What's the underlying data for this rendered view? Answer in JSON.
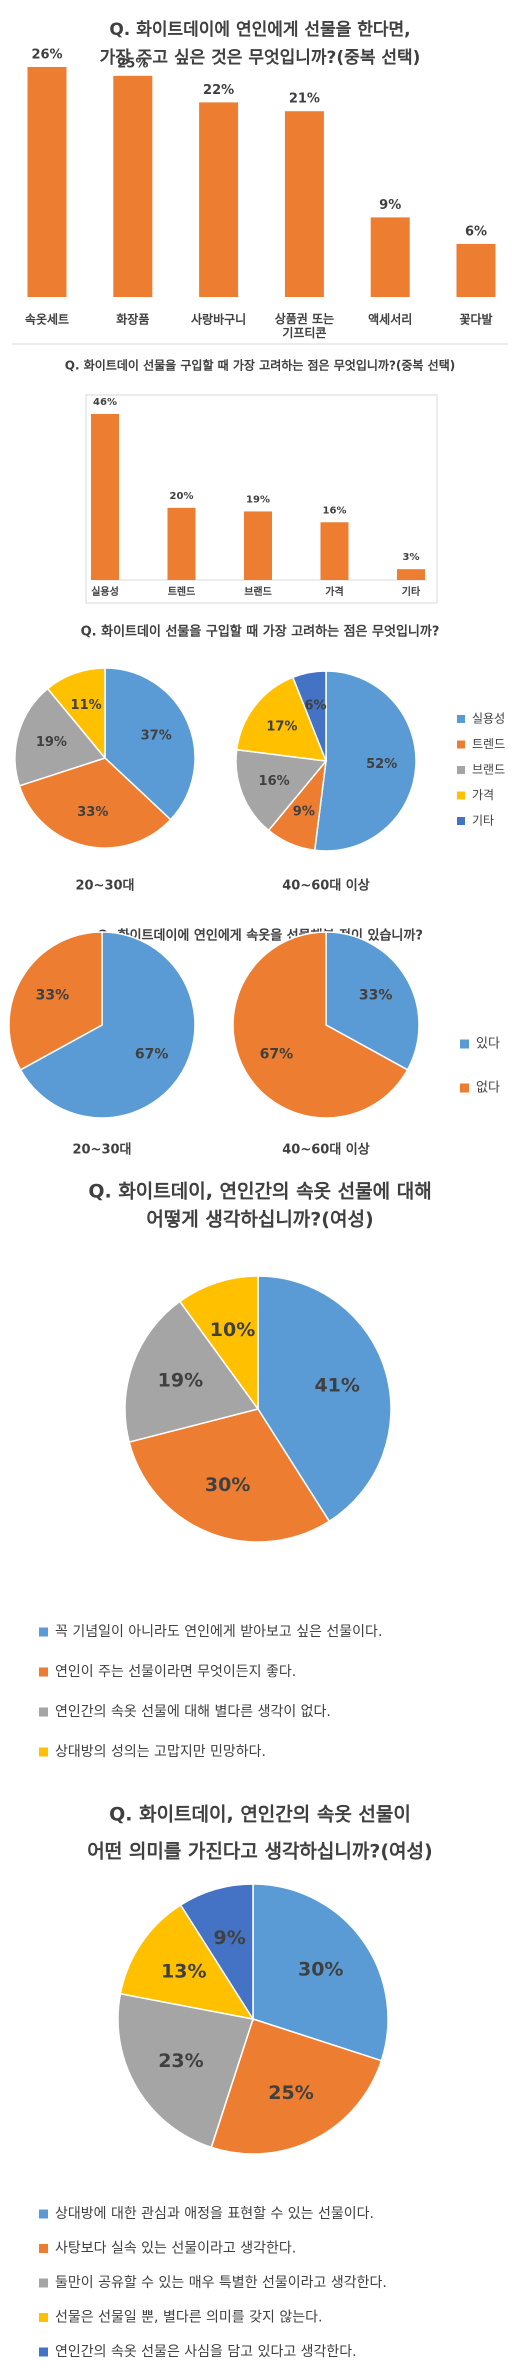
{
  "chart_data": [
    {
      "type": "bar",
      "title": [
        "Q. 화이트데이에 연인에게 선물을 한다면,",
        "가장 주고 싶은 것은 무엇입니까?(중복 선택)"
      ],
      "categories": [
        "속옷세트",
        "화장품",
        "사랑바구니",
        "상품권 또는 기프티콘",
        "액세서리",
        "꽃다발"
      ],
      "values": [
        26,
        25,
        22,
        21,
        9,
        6
      ],
      "value_labels": [
        "26%",
        "25%",
        "22%",
        "21%",
        "9%",
        "6%"
      ],
      "color": "#ed7d31"
    },
    {
      "type": "bar",
      "title": [
        "Q. 화이트데이 선물을 구입할 때 가장 고려하는 점은 무엇입니까?(중복 선택)"
      ],
      "categories": [
        "실용성",
        "트렌드",
        "브랜드",
        "가격",
        "기타"
      ],
      "values": [
        46,
        20,
        19,
        16,
        3
      ],
      "value_labels": [
        "46%",
        "20%",
        "19%",
        "16%",
        "3%"
      ],
      "color": "#ed7d31"
    },
    {
      "type": "pie",
      "title": [
        "Q. 화이트데이 선물을 구입할 때 가장 고려하는 점은 무엇입니까?"
      ],
      "categories": [
        "실용성",
        "트렌드",
        "브랜드",
        "가격",
        "기타"
      ],
      "colors": [
        "#5b9bd5",
        "#ed7d31",
        "#a5a5a5",
        "#ffc000",
        "#4472c4"
      ],
      "pies": [
        {
          "label": "20~30대",
          "values": [
            37,
            33,
            19,
            11,
            null
          ],
          "value_labels": [
            "37%",
            "33%",
            "19%",
            "11%",
            null
          ]
        },
        {
          "label": "40~60대 이상",
          "values": [
            52,
            9,
            16,
            17,
            6
          ],
          "value_labels": [
            "52%",
            "9%",
            "16%",
            "17%",
            "6%"
          ]
        }
      ]
    },
    {
      "type": "pie",
      "title": [
        "Q. 화이트데이에 연인에게 속옷을 선물해본 적이 있습니까?"
      ],
      "categories": [
        "있다",
        "없다"
      ],
      "colors": [
        "#5b9bd5",
        "#ed7d31"
      ],
      "pies": [
        {
          "label": "20~30대",
          "values": [
            67,
            33
          ],
          "value_labels": [
            "67%",
            "33%"
          ]
        },
        {
          "label": "40~60대 이상",
          "values": [
            33,
            67
          ],
          "value_labels": [
            "33%",
            "67%"
          ]
        }
      ]
    },
    {
      "type": "pie",
      "title": [
        "Q. 화이트데이, 연인간의 속옷 선물에 대해",
        "어떻게 생각하십니까?(여성)"
      ],
      "categories": [
        "꼭 기념일이 아니라도 연인에게 받아보고 싶은 선물이다.",
        "연인이 주는 선물이라면 무엇이든지 좋다.",
        "연인간의 속옷 선물에 대해 별다른 생각이 없다.",
        "상대방의 성의는 고맙지만 민망하다."
      ],
      "colors": [
        "#5b9bd5",
        "#ed7d31",
        "#a5a5a5",
        "#ffc000"
      ],
      "pies": [
        {
          "values": [
            41,
            30,
            19,
            10
          ],
          "value_labels": [
            "41%",
            "30%",
            "19%",
            "10%"
          ]
        }
      ]
    },
    {
      "type": "pie",
      "title": [
        "Q. 화이트데이, 연인간의 속옷 선물이",
        "어떤 의미를 가진다고 생각하십니까?(여성)"
      ],
      "categories": [
        "상대방에 대한 관심과 애정을 표현할 수 있는 선물이다.",
        "사탕보다 실속 있는 선물이라고 생각한다.",
        "둘만이 공유할 수 있는 매우 특별한 선물이라고 생각한다.",
        "선물은 선물일 뿐, 별다른 의미를 갖지 않는다.",
        "연인간의 속옷 선물은 사심을 담고 있다고 생각한다."
      ],
      "colors": [
        "#5b9bd5",
        "#ed7d31",
        "#a5a5a5",
        "#ffc000",
        "#4472c4"
      ],
      "pies": [
        {
          "values": [
            30,
            25,
            23,
            13,
            9
          ],
          "value_labels": [
            "30%",
            "25%",
            "23%",
            "13%",
            "9%"
          ]
        }
      ]
    }
  ]
}
